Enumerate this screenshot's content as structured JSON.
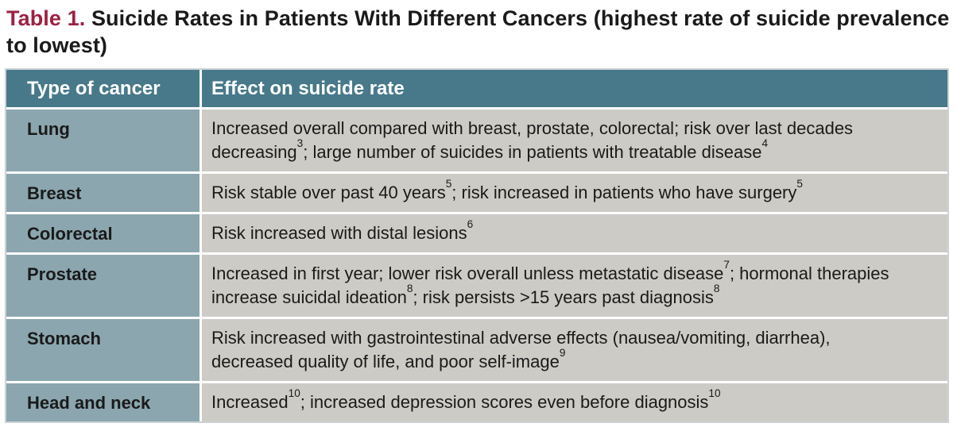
{
  "title": {
    "label": "Table 1.",
    "text": "Suicide Rates in Patients With Different Cancers (highest rate of suicide prevalence to lowest)"
  },
  "table": {
    "columns": [
      "Type of cancer",
      "Effect on suicide rate"
    ],
    "rows": [
      {
        "type": "Lung",
        "effect": [
          [
            "t",
            "Increased overall compared with breast, prostate, colorectal; risk over last decades decreasing"
          ],
          [
            "s",
            "3"
          ],
          [
            "t",
            "; large number of suicides in patients with treatable disease"
          ],
          [
            "s",
            "4"
          ]
        ]
      },
      {
        "type": "Breast",
        "effect": [
          [
            "t",
            "Risk stable over past 40 years"
          ],
          [
            "s",
            "5"
          ],
          [
            "t",
            "; risk increased in patients who have surgery"
          ],
          [
            "s",
            "5"
          ]
        ]
      },
      {
        "type": "Colorectal",
        "effect": [
          [
            "t",
            "Risk increased with distal lesions"
          ],
          [
            "s",
            "6"
          ]
        ]
      },
      {
        "type": "Prostate",
        "effect": [
          [
            "t",
            "Increased in first year; lower risk overall unless metastatic disease"
          ],
          [
            "s",
            "7"
          ],
          [
            "t",
            "; hormonal therapies increase suicidal ideation"
          ],
          [
            "s",
            "8"
          ],
          [
            "t",
            "; risk persists >15 years past diagnosis"
          ],
          [
            "s",
            "8"
          ]
        ]
      },
      {
        "type": "Stomach",
        "effect": [
          [
            "t",
            "Risk increased with gastrointestinal adverse effects (nausea/vomiting, diarrhea), decreased quality of life, and poor self-image"
          ],
          [
            "s",
            "9"
          ]
        ]
      },
      {
        "type": "Head and neck",
        "effect": [
          [
            "t",
            "Increased"
          ],
          [
            "s",
            "10"
          ],
          [
            "t",
            "; increased depression scores even before diagnosis"
          ],
          [
            "s",
            "10"
          ]
        ]
      }
    ]
  },
  "colors": {
    "title_label": "#9c2143",
    "header_bg": "#47798a",
    "header_text": "#ffffff",
    "type_col_bg": "#8ba6af",
    "effect_col_bg": "#cccbc5",
    "body_text": "#1a1a1a",
    "outer_border": "#ccd2d4"
  }
}
